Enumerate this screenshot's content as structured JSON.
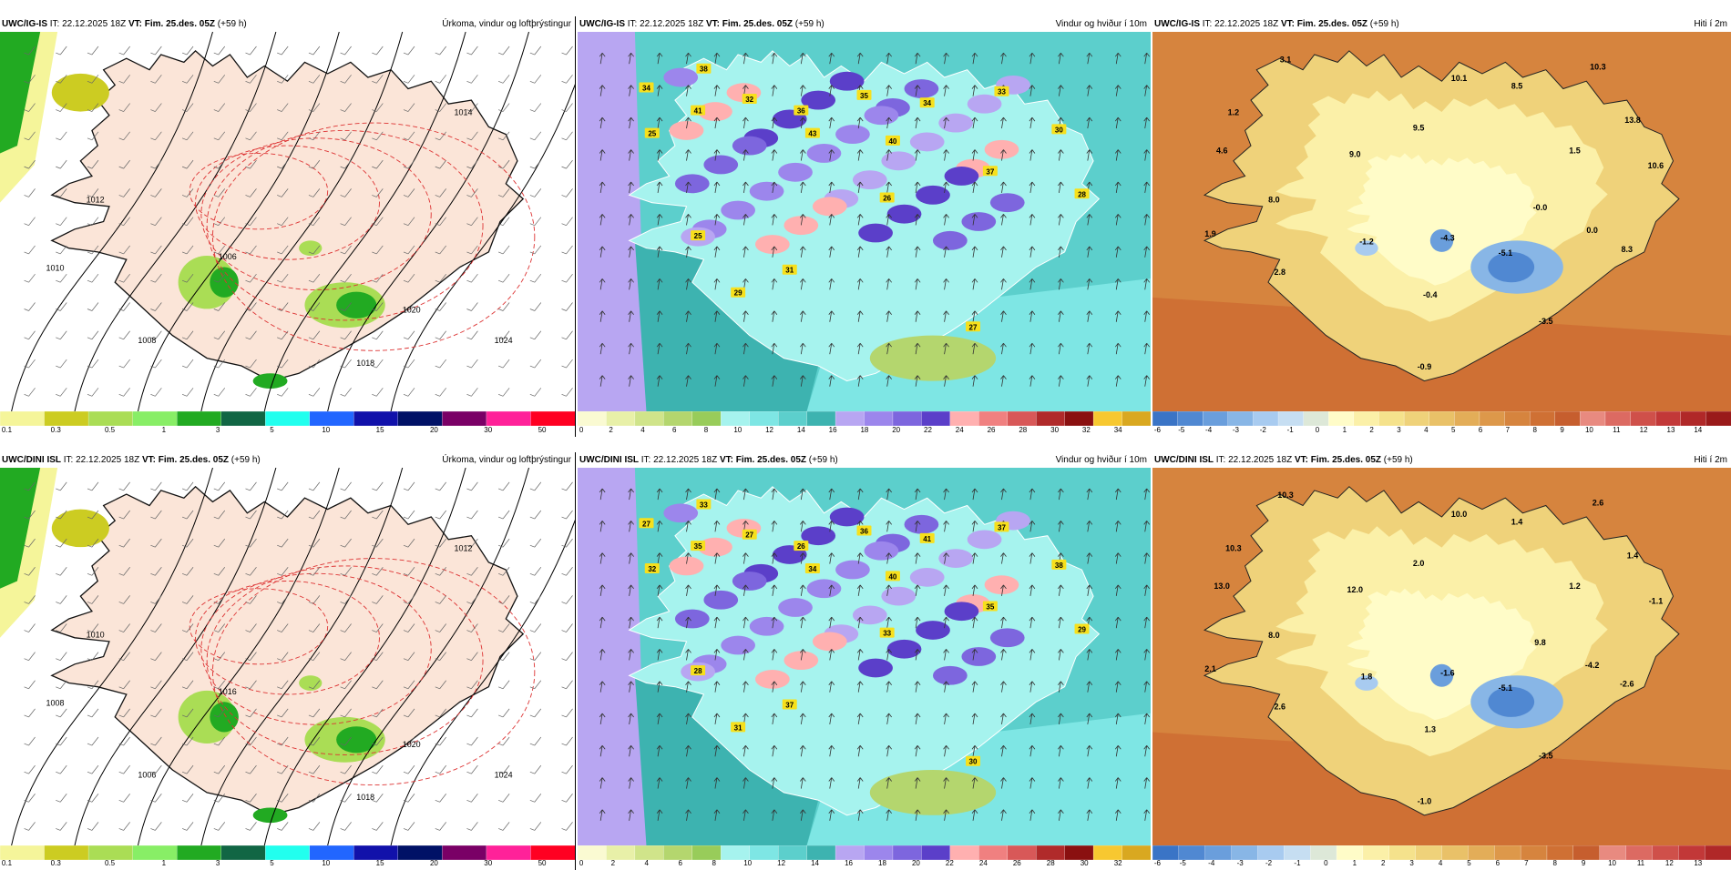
{
  "rows": [
    {
      "panels": [
        {
          "model": "UWC/IG-IS",
          "it": "IT: 22.12.2025 18Z",
          "vt_label": "VT:",
          "vt": "Fim. 25.des. 05Z",
          "lead": "(+59 h)",
          "product": "Úrkoma, vindur og loftþrýstingur",
          "type": "precip",
          "colors": [
            "#f5f59a",
            "#cccc22",
            "#aadd55",
            "#88ee66",
            "#22aa22",
            "#116644",
            "#22ffee",
            "#2266ff",
            "#1111aa",
            "#001166",
            "#7a0066",
            "#ff2299",
            "#ff0022"
          ],
          "ticks": [
            "0.1",
            "0.3",
            "0.5",
            "1",
            "3",
            "5",
            "10",
            "15",
            "20",
            "30",
            "50"
          ],
          "isobar_labels": [
            "1014",
            "1012",
            "1010",
            "1008",
            "1006",
            "1018",
            "1020",
            "1024"
          ]
        },
        {
          "model": "UWC/IG-IS",
          "it": "IT: 22.12.2025 18Z",
          "vt_label": "VT:",
          "vt": "Fim. 25.des. 05Z",
          "lead": "(+59 h)",
          "product": "Vindur og hviður í 10m",
          "type": "wind",
          "colors": [
            "#fafad2",
            "#e8f0a8",
            "#d0e48a",
            "#b4d66e",
            "#98cc5a",
            "#a6f3ee",
            "#7ee6e4",
            "#5ccfcc",
            "#3db3b0",
            "#b8a6f2",
            "#9c86ec",
            "#7d66de",
            "#5b3fc9",
            "#ffb0b0",
            "#f08080",
            "#d85858",
            "#b02a2a",
            "#8a1010",
            "#f7c830",
            "#d9a820"
          ],
          "ticks": [
            "0",
            "2",
            "4",
            "6",
            "8",
            "10",
            "12",
            "14",
            "16",
            "18",
            "20",
            "22",
            "24",
            "26",
            "28",
            "30",
            "32",
            "34"
          ],
          "gust_labels": [
            "34",
            "38",
            "41",
            "25",
            "32",
            "36",
            "35",
            "43",
            "40",
            "34",
            "33",
            "30",
            "37",
            "26",
            "25",
            "28",
            "29",
            "31",
            "27"
          ]
        },
        {
          "model": "UWC/IG-IS",
          "it": "IT: 22.12.2025 18Z",
          "vt_label": "VT:",
          "vt": "Fim. 25.des. 05Z",
          "lead": "(+59 h)",
          "product": "Hiti í 2m",
          "type": "temp",
          "colors": [
            "#3a74c6",
            "#5088d2",
            "#6a9edc",
            "#88b6e6",
            "#a8cbf0",
            "#c6def2",
            "#dde8d8",
            "#fffcc8",
            "#fbf0a8",
            "#f5e28c",
            "#efd27a",
            "#e9c168",
            "#e3ad58",
            "#dd984a",
            "#d6843e",
            "#cf7034",
            "#c65e2e",
            "#e88a80",
            "#dc6a62",
            "#cf504a",
            "#c23838",
            "#b02828",
            "#9a1a1a"
          ],
          "ticks": [
            "-6",
            "-5",
            "-4",
            "-3",
            "-2",
            "-1",
            "0",
            "1",
            "2",
            "3",
            "4",
            "5",
            "6",
            "7",
            "8",
            "9",
            "10",
            "11",
            "12",
            "13",
            "14"
          ],
          "temp_labels": [
            "3.1",
            "10.1",
            "8.5",
            "10.3",
            "1.2",
            "9.5",
            "13.8",
            "4.6",
            "9.0",
            "1.5",
            "10.6",
            "8.0",
            "-0.0",
            "1.9",
            "-1.2",
            "-4.3",
            "0.0",
            "-5.1",
            "8.3",
            "2.8",
            "-0.4",
            "-3.5",
            "-0.9"
          ]
        }
      ]
    },
    {
      "panels": [
        {
          "model": "UWC/DINI ISL",
          "it": "IT: 22.12.2025 18Z",
          "vt_label": "VT:",
          "vt": "Fim. 25.des. 05Z",
          "lead": "(+59 h)",
          "product": "Úrkoma, vindur og loftþrýstingur",
          "type": "precip",
          "colors": [
            "#f5f59a",
            "#cccc22",
            "#aadd55",
            "#88ee66",
            "#22aa22",
            "#116644",
            "#22ffee",
            "#2266ff",
            "#1111aa",
            "#001166",
            "#7a0066",
            "#ff2299",
            "#ff0022"
          ],
          "ticks": [
            "0.1",
            "0.3",
            "0.5",
            "1",
            "3",
            "5",
            "10",
            "15",
            "20",
            "30",
            "50"
          ],
          "isobar_labels": [
            "1012",
            "1010",
            "1008",
            "1006",
            "1016",
            "1018",
            "1020",
            "1024"
          ]
        },
        {
          "model": "UWC/DINI ISL",
          "it": "IT: 22.12.2025 18Z",
          "vt_label": "VT:",
          "vt": "Fim. 25.des. 05Z",
          "lead": "(+59 h)",
          "product": "Vindur og hviður í 10m",
          "type": "wind",
          "colors": [
            "#fafad2",
            "#e8f0a8",
            "#d0e48a",
            "#b4d66e",
            "#98cc5a",
            "#a6f3ee",
            "#7ee6e4",
            "#5ccfcc",
            "#3db3b0",
            "#b8a6f2",
            "#9c86ec",
            "#7d66de",
            "#5b3fc9",
            "#ffb0b0",
            "#f08080",
            "#d85858",
            "#b02a2a",
            "#8a1010",
            "#f7c830",
            "#d9a820"
          ],
          "ticks": [
            "0",
            "2",
            "4",
            "6",
            "8",
            "10",
            "12",
            "14",
            "16",
            "18",
            "20",
            "22",
            "24",
            "26",
            "28",
            "30",
            "32"
          ],
          "gust_labels": [
            "27",
            "33",
            "35",
            "32",
            "27",
            "26",
            "36",
            "34",
            "40",
            "41",
            "37",
            "38",
            "35",
            "33",
            "28",
            "29",
            "31",
            "37",
            "30"
          ]
        },
        {
          "model": "UWC/DINI ISL",
          "it": "IT: 22.12.2025 18Z",
          "vt_label": "VT:",
          "vt": "Fim. 25.des. 05Z",
          "lead": "(+59 h)",
          "product": "Hiti í 2m",
          "type": "temp",
          "colors": [
            "#3a74c6",
            "#5088d2",
            "#6a9edc",
            "#88b6e6",
            "#a8cbf0",
            "#c6def2",
            "#dde8d8",
            "#fffcc8",
            "#fbf0a8",
            "#f5e28c",
            "#efd27a",
            "#e9c168",
            "#e3ad58",
            "#dd984a",
            "#d6843e",
            "#cf7034",
            "#c65e2e",
            "#e88a80",
            "#dc6a62",
            "#cf504a",
            "#c23838",
            "#b02828"
          ],
          "ticks": [
            "-6",
            "-5",
            "-4",
            "-3",
            "-2",
            "-1",
            "0",
            "1",
            "2",
            "3",
            "4",
            "5",
            "6",
            "7",
            "8",
            "9",
            "10",
            "11",
            "12",
            "13"
          ],
          "temp_labels": [
            "10.3",
            "10.0",
            "1.4",
            "2.6",
            "10.3",
            "2.0",
            "1.4",
            "13.0",
            "12.0",
            "1.2",
            "-1.1",
            "8.0",
            "9.8",
            "2.1",
            "1.8",
            "-1.6",
            "-4.2",
            "-5.1",
            "-2.6",
            "2.6",
            "1.3",
            "-3.5",
            "-1.0"
          ]
        }
      ]
    }
  ]
}
